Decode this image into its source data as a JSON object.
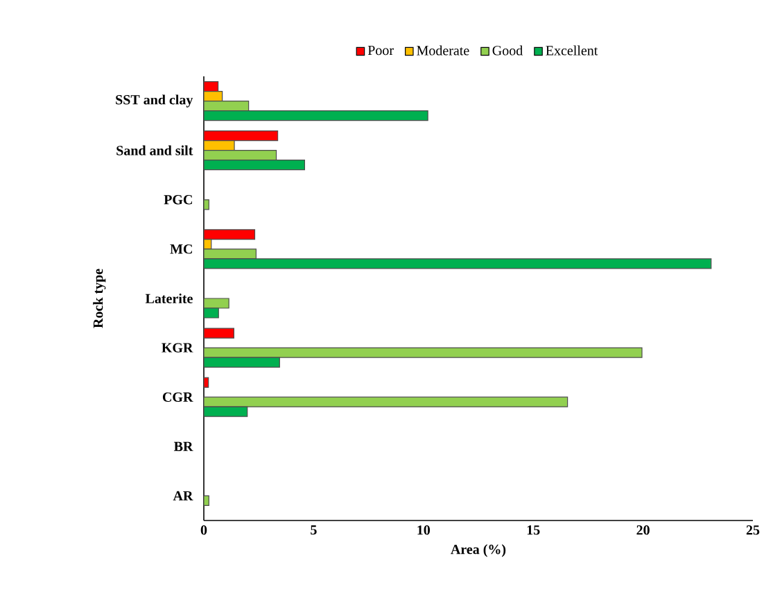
{
  "chart_data": {
    "type": "bar",
    "orientation": "horizontal",
    "xlabel": "Area (%)",
    "ylabel": "Rock type",
    "categories": [
      "SST and clay",
      "Sand and silt",
      "PGC",
      "MC",
      "Laterite",
      "KGR",
      "CGR",
      "BR",
      "AR"
    ],
    "series": [
      {
        "name": "Poor",
        "color": "#ff0000",
        "values": [
          0.65,
          3.37,
          null,
          2.32,
          null,
          1.37,
          0.21,
          null,
          null
        ]
      },
      {
        "name": "Moderate",
        "color": "#ffc000",
        "values": [
          0.84,
          1.39,
          null,
          0.34,
          null,
          null,
          null,
          null,
          null
        ]
      },
      {
        "name": "Good",
        "color": "#92d050",
        "values": [
          2.04,
          3.3,
          0.23,
          2.38,
          1.14,
          19.95,
          16.56,
          null,
          0.23
        ]
      },
      {
        "name": "Excellent",
        "color": "#00b050",
        "values": [
          10.2,
          4.59,
          null,
          23.1,
          0.67,
          3.45,
          1.98,
          null,
          null
        ]
      }
    ],
    "xlim": [
      0,
      25
    ],
    "xticks": [
      0,
      5,
      10,
      15,
      20,
      25
    ],
    "grid": false,
    "legend": "top"
  }
}
